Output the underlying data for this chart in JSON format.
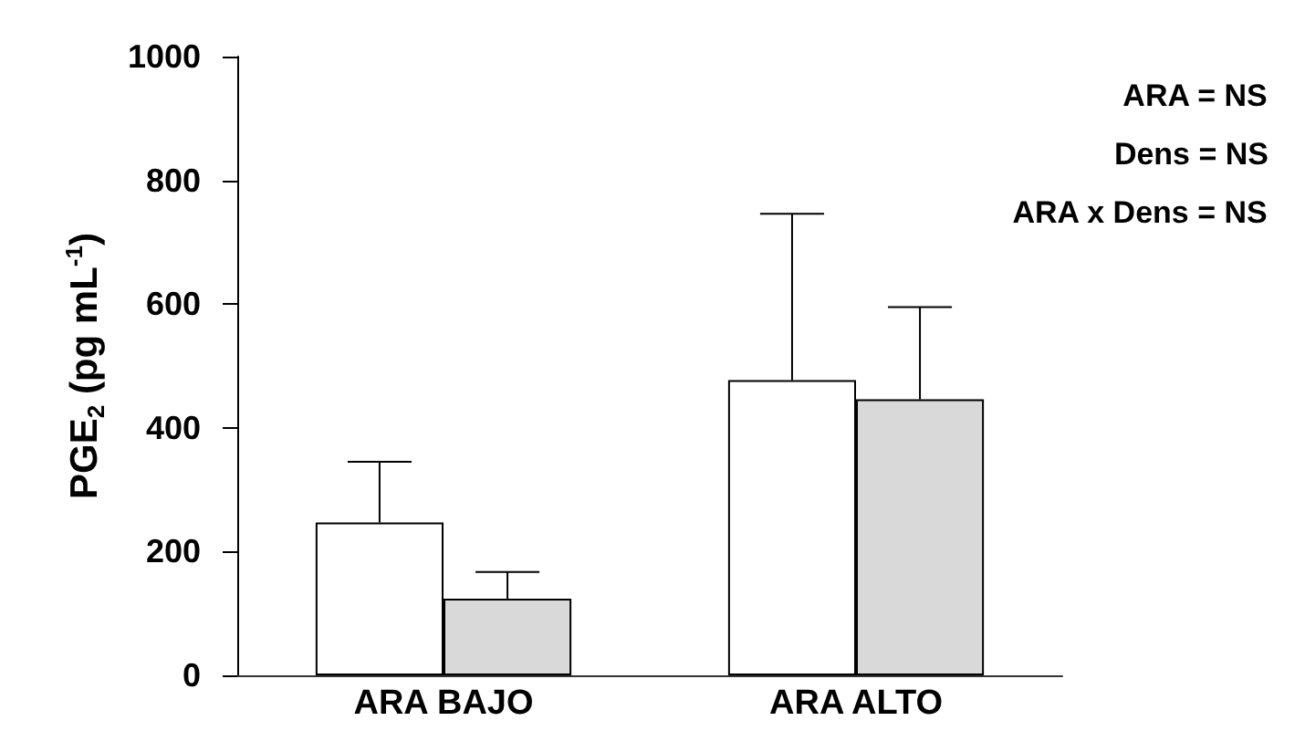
{
  "chart_data": {
    "type": "bar",
    "ylabel": "PGE$_{2}$ (pg mL$^{-1}$)",
    "categories": [
      "ARA BAJO",
      "ARA ALTO"
    ],
    "series": [
      {
        "color": "#ffffff",
        "values": [
          247,
          477
        ],
        "errors": [
          [
            247,
            345
          ],
          [
            477,
            746
          ]
        ]
      },
      {
        "color": "#d9d9d9",
        "values": [
          124,
          446
        ],
        "errors": [
          [
            124,
            167
          ],
          [
            446,
            595
          ]
        ]
      }
    ],
    "ylim": [
      0,
      1000
    ],
    "yticks": [
      0,
      200,
      400,
      600,
      800,
      1000
    ],
    "grid": false,
    "annotations": [
      "ARA = NS",
      "Dens = NS",
      "ARA x Dens = NS"
    ]
  }
}
